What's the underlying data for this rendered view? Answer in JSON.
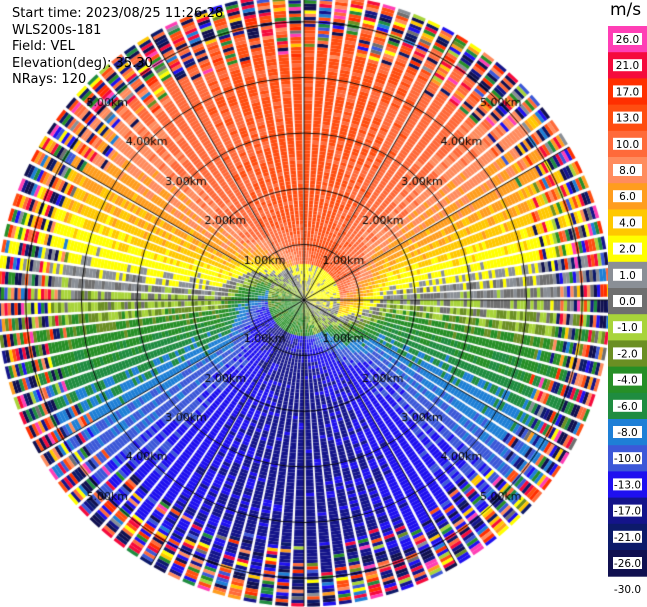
{
  "header": {
    "start_time": "Start time: 2023/08/25 11:26:28",
    "site": "WLS200s-181",
    "field": "Field: VEL",
    "elevation": "Elevation(deg): 35.30",
    "nrays": "NRays: 120"
  },
  "chart_data": {
    "type": "polar-ppi",
    "title": "",
    "field": "VEL",
    "units": "m/s",
    "n_rays": 120,
    "max_range_km": 5.5,
    "range_ring_labels": [
      "1.00km",
      "2.00km",
      "3.00km",
      "4.00km",
      "5.00km"
    ],
    "range_rings_km": [
      1,
      2,
      3,
      4,
      5
    ],
    "spokes_deg": [
      0,
      30,
      60,
      90,
      120,
      150,
      180,
      210,
      240,
      270,
      300,
      330
    ],
    "colorbar": {
      "label": "m/s",
      "ticks": [
        "26.0",
        "21.0",
        "17.0",
        "13.0",
        "10.0",
        "8.0",
        "6.0",
        "4.0",
        "2.0",
        "1.0",
        "0.0",
        "-1.0",
        "-2.0",
        "-4.0",
        "-6.0",
        "-8.0",
        "-10.0",
        "-13.0",
        "-17.0",
        "-21.0",
        "-26.0",
        "-30.0"
      ],
      "bins": [
        {
          "min": 26,
          "color": "#ff3eb5"
        },
        {
          "min": 21,
          "color": "#f50a3c"
        },
        {
          "min": 17,
          "color": "#ff2f00"
        },
        {
          "min": 13,
          "color": "#ff4d10"
        },
        {
          "min": 10,
          "color": "#ff6a3a"
        },
        {
          "min": 8,
          "color": "#ff8c5e"
        },
        {
          "min": 6,
          "color": "#ff9d1e"
        },
        {
          "min": 4,
          "color": "#ffc800"
        },
        {
          "min": 2,
          "color": "#ffff00"
        },
        {
          "min": 1,
          "color": "#8a8f96"
        },
        {
          "min": 0,
          "color": "#6f6f6f"
        },
        {
          "min": -1,
          "color": "#a8d43a"
        },
        {
          "min": -2,
          "color": "#6b8f23"
        },
        {
          "min": -4,
          "color": "#268f26"
        },
        {
          "min": -6,
          "color": "#1f8c40"
        },
        {
          "min": -8,
          "color": "#1e7fd6"
        },
        {
          "min": -10,
          "color": "#3c58d8"
        },
        {
          "min": -13,
          "color": "#1f10f0"
        },
        {
          "min": -17,
          "color": "#14148a"
        },
        {
          "min": -21,
          "color": "#0c1a6a"
        },
        {
          "min": -26,
          "color": "#101050"
        }
      ]
    },
    "velocity_model": {
      "near_range_km": 1.2,
      "outer_noise_start_km": 4.3,
      "positive_toward_deg": 0,
      "negative_toward_deg": 180
    }
  }
}
